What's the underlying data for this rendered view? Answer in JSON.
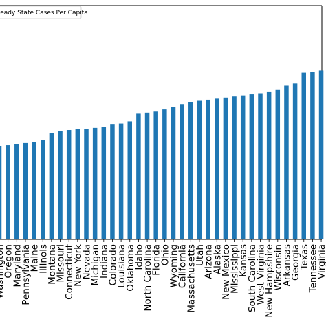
{
  "chart_data": {
    "type": "bar",
    "categories": [
      "Washington",
      "Oregon",
      "Maryland",
      "Pennsylvania",
      "Maine",
      "Illinois",
      "Montana",
      "Missouri",
      "Connecticut",
      "New York",
      "Nevada",
      "Michigan",
      "Indiana",
      "Colorado",
      "Louisiana",
      "Oklahoma",
      "Idaho",
      "North Carolina",
      "Florida",
      "Ohio",
      "Wyoming",
      "California",
      "Massachusetts",
      "Utah",
      "Arizona",
      "Alaska",
      "New Mexico",
      "Mississippi",
      "Kansas",
      "South Carolina",
      "West Virginia",
      "New Hampshire",
      "Wisconsin",
      "Arkansas",
      "Georgia",
      "Texas",
      "Tennessee",
      "Virginia"
    ],
    "series": [
      {
        "name": "Steady State Cases Per Capita",
        "color": "#1f77b4",
        "values": [
          0.43,
          0.435,
          0.44,
          0.445,
          0.45,
          0.46,
          0.49,
          0.5,
          0.505,
          0.51,
          0.51,
          0.515,
          0.52,
          0.53,
          0.535,
          0.545,
          0.58,
          0.585,
          0.59,
          0.6,
          0.61,
          0.625,
          0.635,
          0.64,
          0.645,
          0.65,
          0.655,
          0.66,
          0.665,
          0.67,
          0.675,
          0.68,
          0.69,
          0.71,
          0.72,
          0.77,
          0.775,
          0.78
        ]
      }
    ],
    "legend": {
      "label": "Steady State Cases Per Capita",
      "placement": "top-left"
    },
    "ylim": [
      0,
      1.08
    ],
    "grid": false,
    "xlabel": "",
    "ylabel": "",
    "title": ""
  }
}
